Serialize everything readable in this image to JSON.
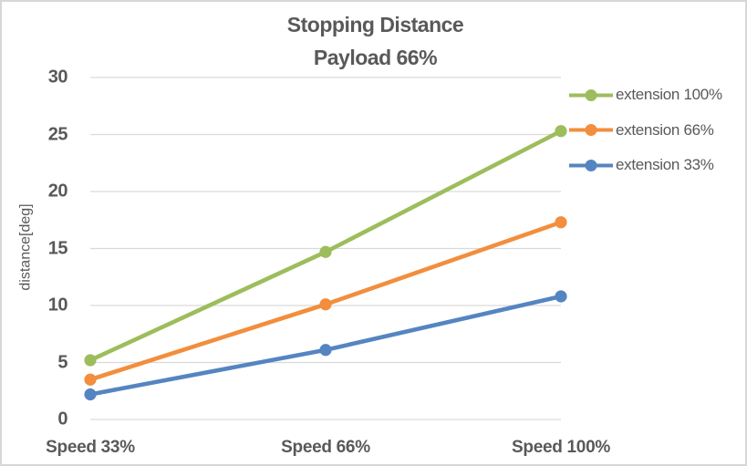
{
  "window": {
    "background": "#ffffff",
    "border_color": "#d7d7d7"
  },
  "chart_data": {
    "type": "line",
    "title": "Stopping Distance",
    "subtitle": "Payload 66%",
    "categories": [
      "Speed 33%",
      "Speed 66%",
      "Speed 100%"
    ],
    "series": [
      {
        "name": "extension 100%",
        "color": "#9dbd5c",
        "values": [
          5.2,
          14.7,
          25.3
        ]
      },
      {
        "name": "extension 66%",
        "color": "#f28e3d",
        "values": [
          3.5,
          10.1,
          17.3
        ]
      },
      {
        "name": "extension 33%",
        "color": "#5585c1",
        "values": [
          2.2,
          6.1,
          10.8
        ]
      }
    ],
    "xlabel": "",
    "ylabel": "distance[deg]",
    "ylim": [
      0,
      30
    ],
    "yticks": [
      0,
      5,
      10,
      15,
      20,
      25,
      30
    ],
    "grid": true,
    "gridline_color": "#d9d9d9",
    "text_color": "#595959",
    "legend_position": "right",
    "marker": "circle"
  }
}
